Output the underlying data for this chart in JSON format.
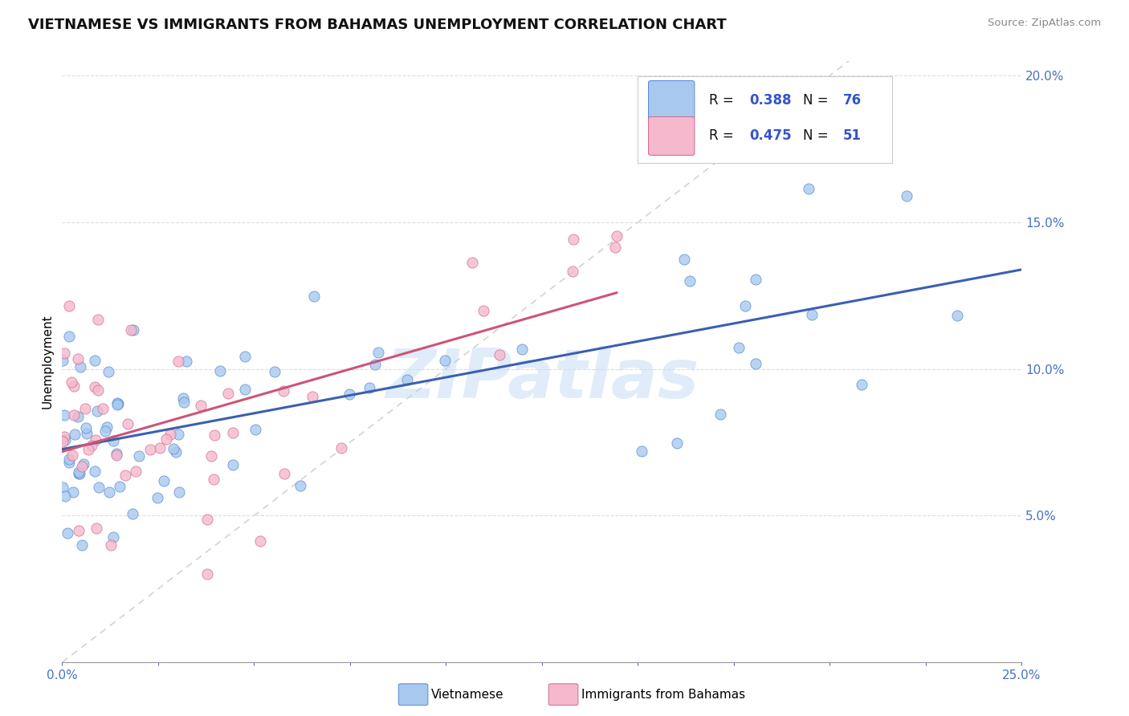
{
  "title": "VIETNAMESE VS IMMIGRANTS FROM BAHAMAS UNEMPLOYMENT CORRELATION CHART",
  "source": "Source: ZipAtlas.com",
  "ylabel": "Unemployment",
  "xlim": [
    0.0,
    0.25
  ],
  "ylim": [
    0.0,
    0.205
  ],
  "r1": 0.388,
  "n1": 76,
  "r2": 0.475,
  "n2": 51,
  "series1_facecolor": "#a8c8f0",
  "series1_edgecolor": "#5588cc",
  "series2_facecolor": "#f5b8cc",
  "series2_edgecolor": "#d06888",
  "line1_color": "#3a60b0",
  "line2_color": "#cc5577",
  "diag_color": "#cccccc",
  "label1": "Vietnamese",
  "label2": "Immigrants from Bahamas",
  "watermark": "ZIPatlas",
  "watermark_color": "#c8ddf5",
  "legend_text_color": "#111111",
  "legend_num_color": "#3355cc",
  "bg_color": "#ffffff",
  "grid_color": "#dddddd",
  "axis_color": "#999999",
  "tick_label_color": "#4472c4",
  "title_color": "#111111",
  "source_color": "#888888"
}
